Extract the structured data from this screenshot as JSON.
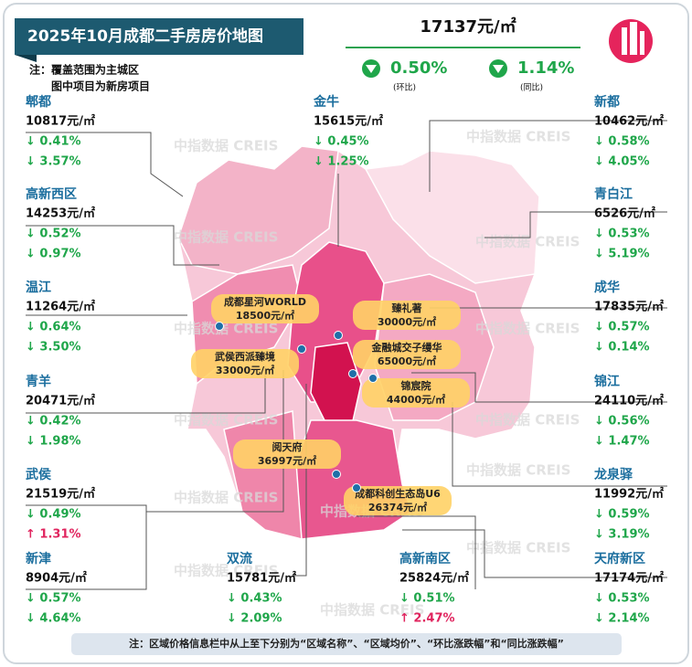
{
  "header": {
    "title": "2025年10月成都二手房房价地图",
    "avg_price": "17137元/㎡",
    "mom": "0.50%",
    "mom_label": "(环比)",
    "yoy": "1.14%",
    "yoy_label": "(同比)",
    "notes": [
      "注：覆盖范围为主城区",
      "图中项目为新房项目"
    ]
  },
  "watermark": "中指数据 CREIS",
  "districts": [
    {
      "name": "郫都",
      "price": "10817元/㎡",
      "mom": "↓ 0.41%",
      "yoy": "↓ 3.57%",
      "mom_color": "#1fa64a",
      "yoy_color": "#1fa64a"
    },
    {
      "name": "高新西区",
      "price": "14253元/㎡",
      "mom": "↓ 0.52%",
      "yoy": "↓ 0.97%",
      "mom_color": "#1fa64a",
      "yoy_color": "#1fa64a"
    },
    {
      "name": "温江",
      "price": "11264元/㎡",
      "mom": "↓ 0.64%",
      "yoy": "↓ 3.50%",
      "mom_color": "#1fa64a",
      "yoy_color": "#1fa64a"
    },
    {
      "name": "青羊",
      "price": "20471元/㎡",
      "mom": "↓ 0.42%",
      "yoy": "↓ 1.98%",
      "mom_color": "#1fa64a",
      "yoy_color": "#1fa64a"
    },
    {
      "name": "武侯",
      "price": "21519元/㎡",
      "mom": "↓ 0.49%",
      "yoy": "↑ 1.31%",
      "mom_color": "#1fa64a",
      "yoy_color": "#e0245e"
    },
    {
      "name": "新津",
      "price": "8904元/㎡",
      "mom": "↓ 0.57%",
      "yoy": "↓ 4.64%",
      "mom_color": "#1fa64a",
      "yoy_color": "#1fa64a"
    },
    {
      "name": "金牛",
      "price": "15615元/㎡",
      "mom": "↓ 0.45%",
      "yoy": "↓ 1.25%",
      "mom_color": "#1fa64a",
      "yoy_color": "#1fa64a"
    },
    {
      "name": "双流",
      "price": "15781元/㎡",
      "mom": "↓ 0.43%",
      "yoy": "↓ 2.09%",
      "mom_color": "#1fa64a",
      "yoy_color": "#1fa64a"
    },
    {
      "name": "高新南区",
      "price": "25824元/㎡",
      "mom": "↓ 0.51%",
      "yoy": "↑ 2.47%",
      "mom_color": "#1fa64a",
      "yoy_color": "#e0245e"
    },
    {
      "name": "新都",
      "price": "10462元/㎡",
      "mom": "↓ 0.58%",
      "yoy": "↓ 4.05%",
      "mom_color": "#1fa64a",
      "yoy_color": "#1fa64a"
    },
    {
      "name": "青白江",
      "price": "6526元/㎡",
      "mom": "↓ 0.53%",
      "yoy": "↓ 5.19%",
      "mom_color": "#1fa64a",
      "yoy_color": "#1fa64a"
    },
    {
      "name": "成华",
      "price": "17835元/㎡",
      "mom": "↓ 0.57%",
      "yoy": "↓ 0.14%",
      "mom_color": "#1fa64a",
      "yoy_color": "#1fa64a"
    },
    {
      "name": "锦江",
      "price": "24110元/㎡",
      "mom": "↓ 0.56%",
      "yoy": "↓ 1.47%",
      "mom_color": "#1fa64a",
      "yoy_color": "#1fa64a"
    },
    {
      "name": "龙泉驿",
      "price": "11992元/㎡",
      "mom": "↓ 0.59%",
      "yoy": "↓ 3.19%",
      "mom_color": "#1fa64a",
      "yoy_color": "#1fa64a"
    },
    {
      "name": "天府新区",
      "price": "17174元/㎡",
      "mom": "↓ 0.53%",
      "yoy": "↓ 2.14%",
      "mom_color": "#1fa64a",
      "yoy_color": "#1fa64a"
    }
  ],
  "projects": [
    {
      "name": "成都星河WORLD",
      "price": "18500元/㎡"
    },
    {
      "name": "臻礼著",
      "price": "30000元/㎡"
    },
    {
      "name": "武侯西派臻境",
      "price": "33000元/㎡"
    },
    {
      "name": "金融城交子缦华",
      "price": "65000元/㎡"
    },
    {
      "name": "锦宸院",
      "price": "44000元/㎡"
    },
    {
      "name": "阅天府",
      "price": "36997元/㎡"
    },
    {
      "name": "成都科创生态岛U6",
      "price": "26374元/㎡"
    }
  ],
  "footer": "注：区域价格信息栏中从上至下分别为“区域名称”、“区域均价”、“环比涨跌幅”和“同比涨跌幅”"
}
